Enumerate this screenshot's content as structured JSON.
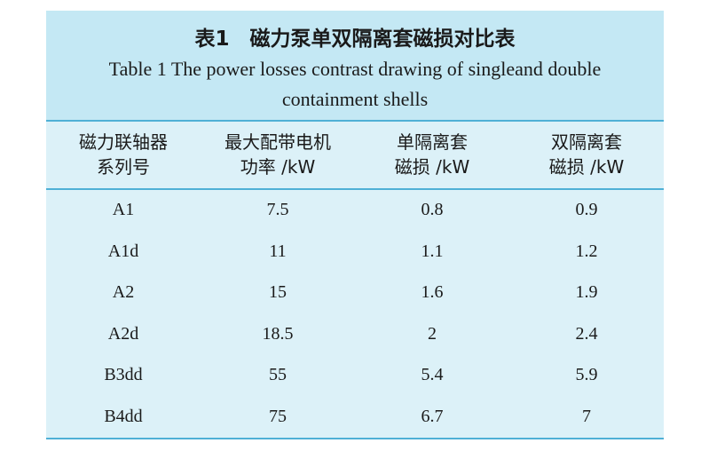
{
  "table": {
    "title_cn": "表1　磁力泵单双隔离套磁损对比表",
    "title_en": "Table 1  The power losses contrast drawing of singleand double containment shells",
    "headers": [
      [
        "磁力联轴器",
        "系列号"
      ],
      [
        "最大配带电机",
        "功率 /kW"
      ],
      [
        "单隔离套",
        "磁损 /kW"
      ],
      [
        "双隔离套",
        "磁损 /kW"
      ]
    ],
    "rows": [
      [
        "A1",
        "7.5",
        "0.8",
        "0.9"
      ],
      [
        "A1d",
        "11",
        "1.1",
        "1.2"
      ],
      [
        "A2",
        "15",
        "1.6",
        "1.9"
      ],
      [
        "A2d",
        "18.5",
        "2",
        "2.4"
      ],
      [
        "B3dd",
        "55",
        "5.4",
        "5.9"
      ],
      [
        "B4dd",
        "75",
        "6.7",
        "7"
      ]
    ]
  }
}
